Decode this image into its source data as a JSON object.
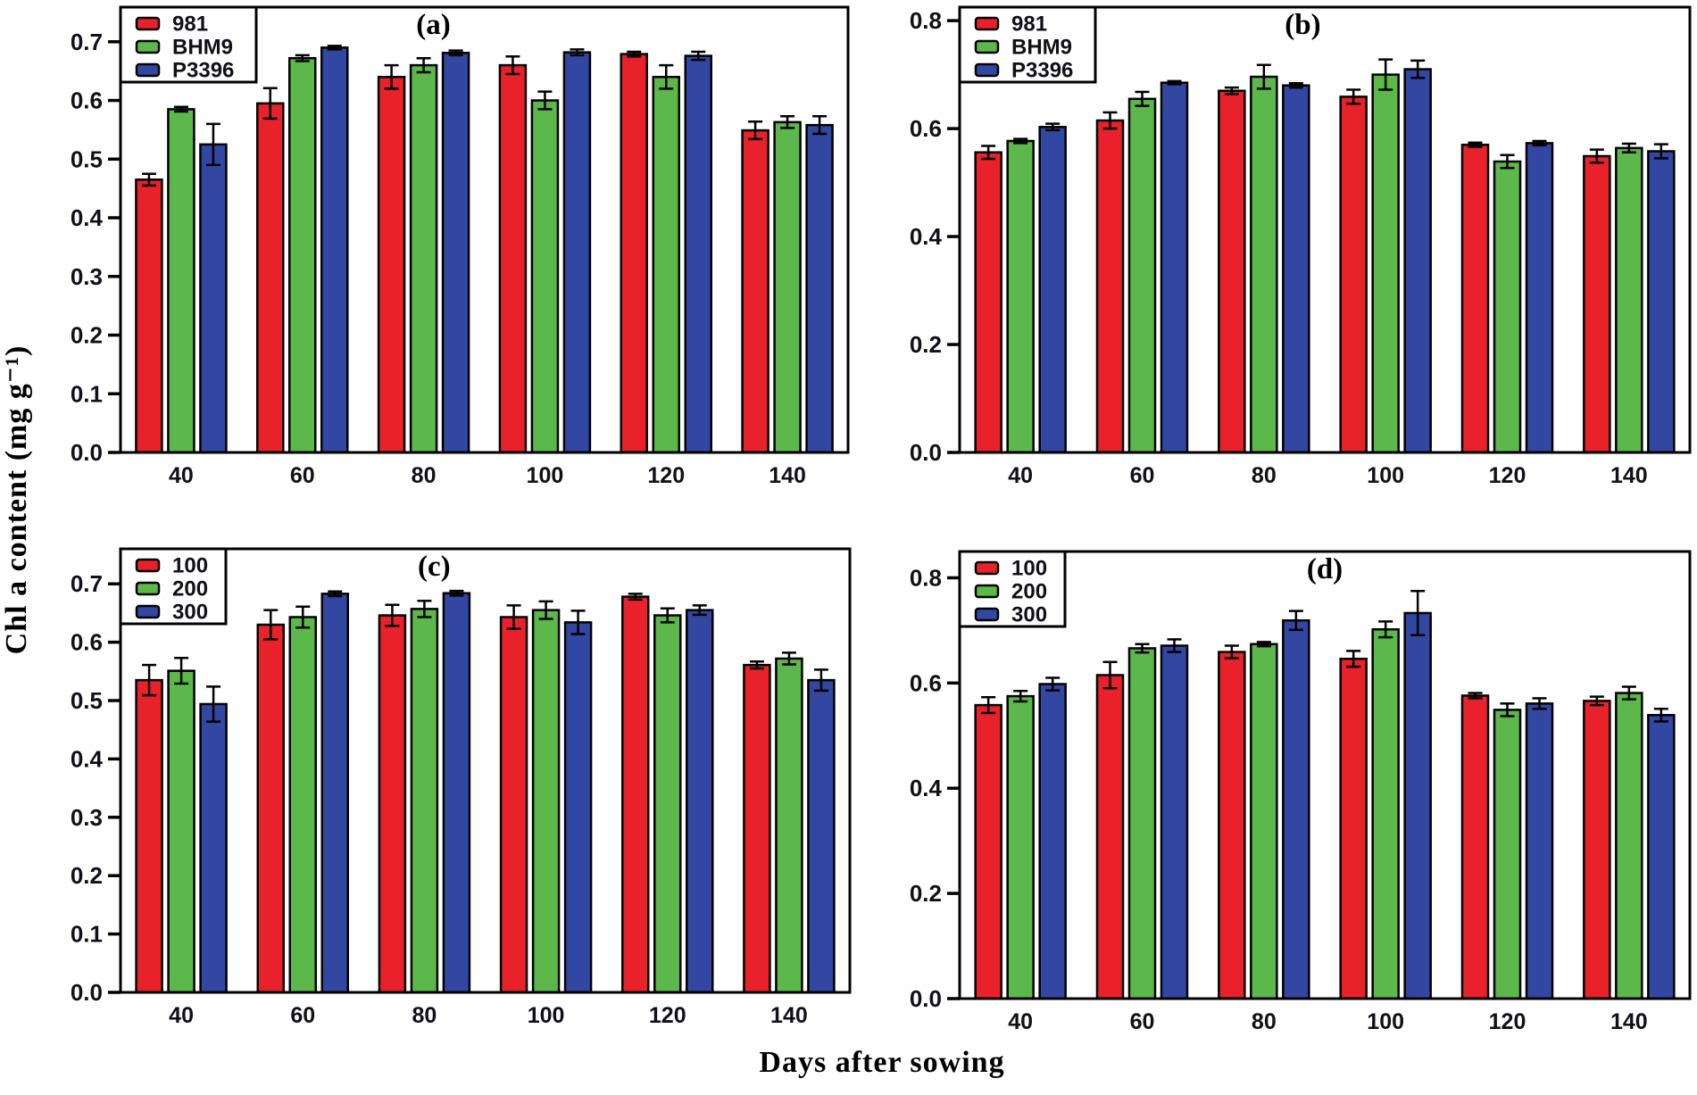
{
  "figure": {
    "ylabel": "Chl a content (mg g⁻¹)",
    "xlabel": "Days after sowing",
    "colors": {
      "red": "#e8212a",
      "green": "#5cb84a",
      "blue": "#3247a2",
      "axis": "#000000",
      "text": "#101018"
    }
  },
  "chart_data": [
    {
      "type": "bar",
      "panel_label": "(a)",
      "categories": [
        "40",
        "60",
        "80",
        "100",
        "120",
        "140"
      ],
      "xlabel": "Days after sowing",
      "ylabel": "Chl a content (mg g⁻¹)",
      "ylim": [
        0,
        0.7
      ],
      "yticks": [
        "0.0",
        "0.1",
        "0.2",
        "0.3",
        "0.4",
        "0.5",
        "0.6",
        "0.7"
      ],
      "grid": false,
      "legend_position": "top-left",
      "series": [
        {
          "name": "981",
          "color": "red",
          "values": [
            0.465,
            0.595,
            0.64,
            0.66,
            0.679,
            0.549
          ],
          "errors": [
            0.01,
            0.026,
            0.02,
            0.015,
            0.004,
            0.015
          ]
        },
        {
          "name": "BHM9",
          "color": "green",
          "values": [
            0.585,
            0.672,
            0.66,
            0.6,
            0.64,
            0.563
          ],
          "errors": [
            0.004,
            0.005,
            0.012,
            0.015,
            0.02,
            0.01
          ]
        },
        {
          "name": "P3396",
          "color": "blue",
          "values": [
            0.525,
            0.69,
            0.681,
            0.682,
            0.676,
            0.558
          ],
          "errors": [
            0.035,
            0.003,
            0.004,
            0.005,
            0.007,
            0.015
          ]
        }
      ]
    },
    {
      "type": "bar",
      "panel_label": "(b)",
      "categories": [
        "40",
        "60",
        "80",
        "100",
        "120",
        "140"
      ],
      "xlabel": "Days after sowing",
      "ylabel": "Chl a content (mg g⁻¹)",
      "ylim": [
        0,
        0.8
      ],
      "yticks": [
        "0.0",
        "0.2",
        "0.4",
        "0.6",
        "0.8"
      ],
      "grid": false,
      "legend_position": "top-left",
      "series": [
        {
          "name": "981",
          "color": "red",
          "values": [
            0.556,
            0.615,
            0.67,
            0.659,
            0.57,
            0.549
          ],
          "errors": [
            0.012,
            0.015,
            0.006,
            0.013,
            0.004,
            0.012
          ]
        },
        {
          "name": "BHM9",
          "color": "green",
          "values": [
            0.577,
            0.655,
            0.696,
            0.7,
            0.539,
            0.564
          ],
          "errors": [
            0.004,
            0.013,
            0.022,
            0.028,
            0.012,
            0.008
          ]
        },
        {
          "name": "P3396",
          "color": "blue",
          "values": [
            0.603,
            0.685,
            0.68,
            0.71,
            0.573,
            0.558
          ],
          "errors": [
            0.006,
            0.003,
            0.004,
            0.016,
            0.004,
            0.013
          ]
        }
      ]
    },
    {
      "type": "bar",
      "panel_label": "(c)",
      "categories": [
        "40",
        "60",
        "80",
        "100",
        "120",
        "140"
      ],
      "xlabel": "Days after sowing",
      "ylabel": "Chl a content (mg g⁻¹)",
      "ylim": [
        0,
        0.7
      ],
      "yticks": [
        "0.0",
        "0.1",
        "0.2",
        "0.3",
        "0.4",
        "0.5",
        "0.6",
        "0.7"
      ],
      "grid": false,
      "legend_position": "top-left",
      "series": [
        {
          "name": "100",
          "color": "red",
          "values": [
            0.535,
            0.63,
            0.646,
            0.643,
            0.678,
            0.561
          ],
          "errors": [
            0.026,
            0.025,
            0.018,
            0.02,
            0.005,
            0.006
          ]
        },
        {
          "name": "200",
          "color": "green",
          "values": [
            0.551,
            0.643,
            0.657,
            0.655,
            0.646,
            0.572
          ],
          "errors": [
            0.022,
            0.018,
            0.014,
            0.015,
            0.012,
            0.01
          ]
        },
        {
          "name": "300",
          "color": "blue",
          "values": [
            0.494,
            0.683,
            0.684,
            0.634,
            0.655,
            0.535
          ],
          "errors": [
            0.03,
            0.004,
            0.004,
            0.02,
            0.008,
            0.018
          ]
        }
      ]
    },
    {
      "type": "bar",
      "panel_label": "(d)",
      "categories": [
        "40",
        "60",
        "80",
        "100",
        "120",
        "140"
      ],
      "xlabel": "Days after sowing",
      "ylabel": "Chl a content (mg g⁻¹)",
      "ylim": [
        0,
        0.8
      ],
      "yticks": [
        "0.0",
        "0.2",
        "0.4",
        "0.6",
        "0.8"
      ],
      "grid": false,
      "legend_position": "top-left",
      "series": [
        {
          "name": "100",
          "color": "red",
          "values": [
            0.558,
            0.615,
            0.659,
            0.646,
            0.576,
            0.566
          ],
          "errors": [
            0.015,
            0.025,
            0.012,
            0.015,
            0.005,
            0.008
          ]
        },
        {
          "name": "200",
          "color": "green",
          "values": [
            0.575,
            0.666,
            0.674,
            0.702,
            0.549,
            0.581
          ],
          "errors": [
            0.01,
            0.008,
            0.004,
            0.015,
            0.012,
            0.012
          ]
        },
        {
          "name": "300",
          "color": "blue",
          "values": [
            0.598,
            0.671,
            0.719,
            0.733,
            0.561,
            0.539
          ],
          "errors": [
            0.012,
            0.012,
            0.018,
            0.042,
            0.01,
            0.012
          ]
        }
      ]
    }
  ]
}
